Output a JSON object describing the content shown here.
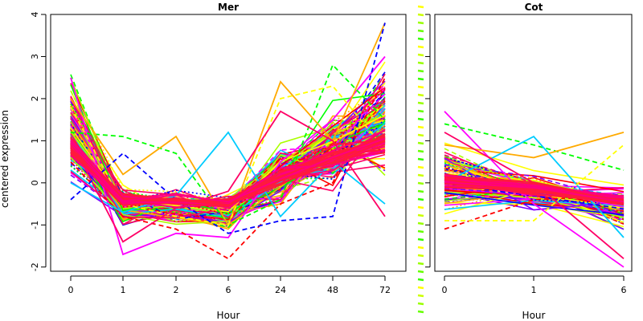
{
  "chart_data": [
    {
      "type": "line",
      "title": "Mer",
      "xlabel": "Hour",
      "ylabel": "centered expression",
      "categories": [
        "0",
        "1",
        "2",
        "6",
        "24",
        "48",
        "72"
      ],
      "ylim": [
        -2.1,
        4.0
      ],
      "yticks": [
        -2,
        -1,
        0,
        1,
        2,
        3,
        4
      ],
      "grid": false,
      "legend": "none",
      "palette": [
        "#ff0000",
        "#ff00ff",
        "#0000ff",
        "#00ccff",
        "#00ff00",
        "#aaff00",
        "#ffff00",
        "#ffaa00",
        "#8000ff",
        "#ff0066"
      ],
      "highlight_series": [
        {
          "values": [
            2.5,
            -1.7,
            -1.2,
            -1.3,
            0.5,
            1.5,
            3.0
          ]
        },
        {
          "values": [
            1.2,
            1.1,
            0.7,
            -1.0,
            -0.4,
            2.8,
            1.5
          ]
        },
        {
          "values": [
            2.0,
            0.2,
            1.1,
            -1.0,
            2.4,
            1.0,
            3.8
          ]
        },
        {
          "values": [
            0.5,
            -0.8,
            -1.1,
            -1.8,
            -0.5,
            0.0,
            2.5
          ]
        },
        {
          "values": [
            0.0,
            -0.7,
            -0.3,
            1.2,
            -0.8,
            0.5,
            -0.5
          ]
        },
        {
          "values": [
            1.8,
            -0.5,
            -0.8,
            -1.0,
            2.0,
            2.3,
            0.8
          ]
        },
        {
          "values": [
            1.0,
            -1.4,
            -0.6,
            -0.2,
            1.7,
            1.0,
            -0.8
          ]
        },
        {
          "values": [
            -0.4,
            0.7,
            -0.4,
            -1.2,
            -0.9,
            -0.8,
            3.8
          ]
        }
      ]
    },
    {
      "type": "line",
      "title": "Cot",
      "xlabel": "Hour",
      "categories": [
        "0",
        "1",
        "6"
      ],
      "ylim": [
        -2.1,
        4.0
      ],
      "yticks": [
        -2,
        -1,
        0,
        1,
        2,
        3,
        4
      ],
      "grid": false,
      "legend": "none",
      "palette": [
        "#ff0000",
        "#ff00ff",
        "#0000ff",
        "#00ccff",
        "#00ff00",
        "#aaff00",
        "#ffff00",
        "#ffaa00",
        "#8000ff",
        "#ff0066"
      ],
      "highlight_series": [
        {
          "values": [
            1.7,
            -0.5,
            -2.0
          ]
        },
        {
          "values": [
            1.4,
            0.9,
            0.3
          ]
        },
        {
          "values": [
            0.9,
            0.6,
            1.2
          ]
        },
        {
          "values": [
            -1.1,
            -0.4,
            -0.3
          ]
        },
        {
          "values": [
            0.0,
            1.1,
            -1.3
          ]
        },
        {
          "values": [
            -0.9,
            -0.9,
            0.9
          ]
        },
        {
          "values": [
            1.2,
            0.0,
            -1.8
          ]
        }
      ]
    }
  ]
}
